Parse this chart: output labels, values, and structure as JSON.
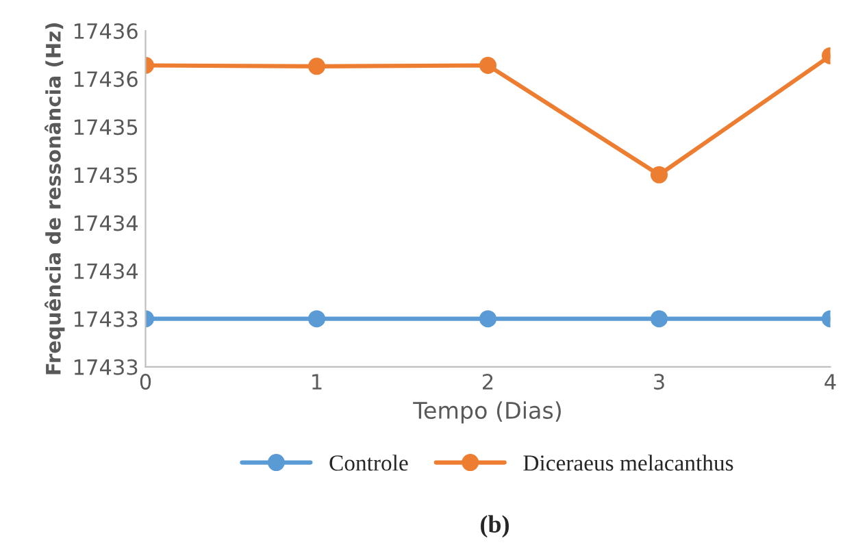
{
  "chart_data": {
    "type": "line",
    "xlabel": "Tempo (Dias)",
    "ylabel": "Frequência de ressonância (Hz)",
    "x": [
      0,
      1,
      2,
      3,
      4
    ],
    "series": [
      {
        "name": "Controle",
        "color": "#5b9bd5",
        "values": [
          17433,
          17433,
          17433,
          17433,
          17433
        ]
      },
      {
        "name": "Diceraeus melacanthus",
        "color": "#ed7d31",
        "values": [
          17435.64,
          17435.63,
          17435.64,
          17434.5,
          17435.74
        ]
      }
    ],
    "xlim": [
      0,
      4
    ],
    "xticks": [
      0,
      1,
      2,
      3,
      4
    ],
    "ylim": [
      17432.5,
      17436
    ],
    "yticks": [
      {
        "value": 17432.5,
        "label": "17433"
      },
      {
        "value": 17433,
        "label": "17433"
      },
      {
        "value": 17433.5,
        "label": "17434"
      },
      {
        "value": 17434,
        "label": "17434"
      },
      {
        "value": 17434.5,
        "label": "17435"
      },
      {
        "value": 17435,
        "label": "17435"
      },
      {
        "value": 17435.5,
        "label": "17436"
      },
      {
        "value": 17436,
        "label": "17436"
      }
    ],
    "grid": false,
    "legend": "bottom",
    "marker": "circle",
    "line_style": "solid",
    "annotations": [
      "(b)"
    ]
  }
}
